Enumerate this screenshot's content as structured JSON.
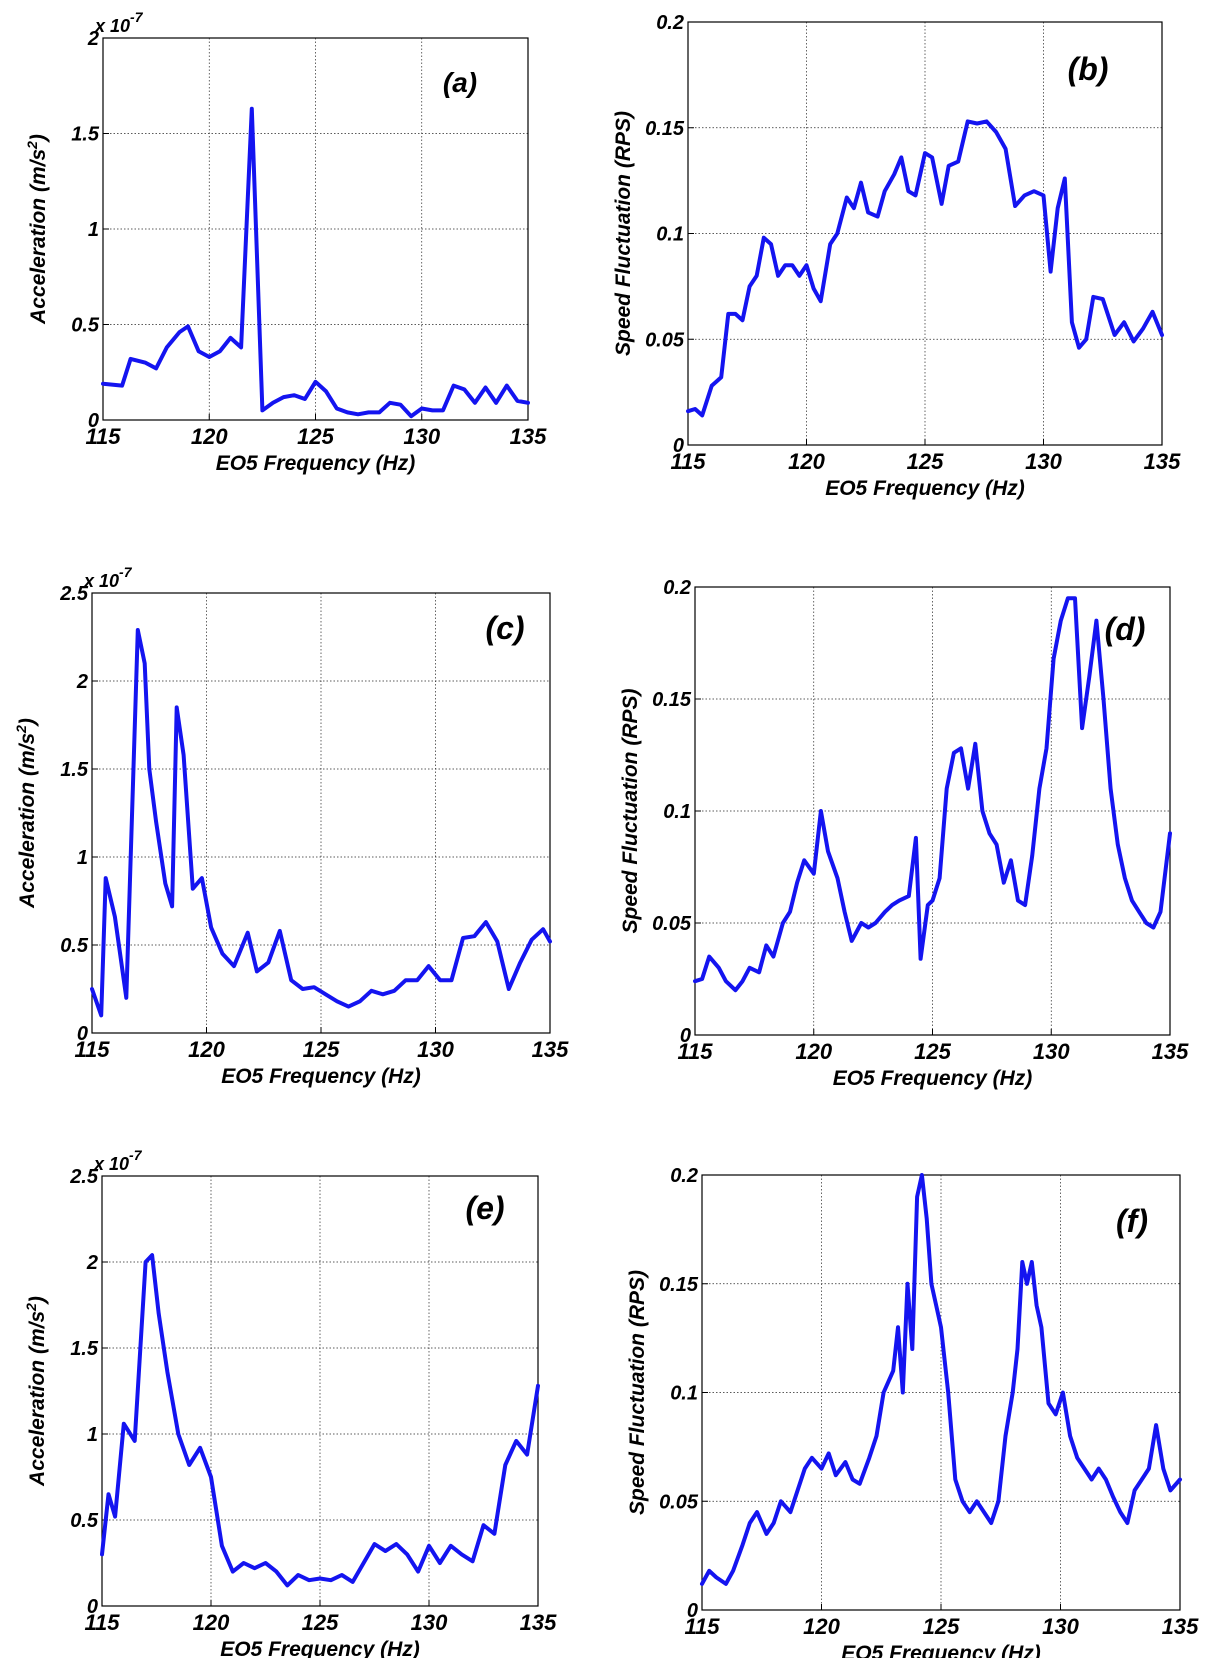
{
  "figure": {
    "panels_label": [
      "(a)",
      "(b)",
      "(c)",
      "(d)",
      "(e)",
      "(f)"
    ]
  },
  "chart_data": [
    {
      "id": "a",
      "type": "line",
      "label": "(a)",
      "xlabel": "EO5 Frequency (Hz)",
      "ylabel": "Acceleration (m/s2)",
      "xlim": [
        115,
        135
      ],
      "ylim": [
        0,
        2
      ],
      "xticks": [
        "115",
        "120",
        "125",
        "130",
        "135"
      ],
      "yticks": [
        "0",
        "0.5",
        "1",
        "1.5",
        "2"
      ],
      "multiplier": "x 10-7",
      "grid": true,
      "series": [
        {
          "x": [
            115,
            115.9,
            116.3,
            117,
            117.5,
            118,
            118.6,
            119,
            119.5,
            120,
            120.5,
            121,
            121.5,
            122,
            122.5,
            123,
            123.5,
            124,
            124.5,
            125,
            125.5,
            126,
            126.5,
            127,
            127.5,
            128,
            128.5,
            129,
            129.5,
            130,
            130.5,
            131,
            131.5,
            132,
            132.5,
            133,
            133.5,
            134,
            134.5,
            135
          ],
          "y": [
            0.19,
            0.18,
            0.32,
            0.3,
            0.27,
            0.38,
            0.46,
            0.49,
            0.36,
            0.33,
            0.36,
            0.43,
            0.38,
            1.63,
            0.05,
            0.09,
            0.12,
            0.13,
            0.11,
            0.2,
            0.15,
            0.06,
            0.04,
            0.03,
            0.04,
            0.04,
            0.09,
            0.08,
            0.02,
            0.06,
            0.05,
            0.05,
            0.18,
            0.16,
            0.09,
            0.17,
            0.09,
            0.18,
            0.1,
            0.09
          ]
        }
      ]
    },
    {
      "id": "b",
      "type": "line",
      "label": "(b)",
      "xlabel": "EO5 Frequency (Hz)",
      "ylabel": "Speed Fluctuation (RPS)",
      "xlim": [
        115,
        135
      ],
      "ylim": [
        0,
        0.2
      ],
      "xticks": [
        "115",
        "120",
        "125",
        "130",
        "135"
      ],
      "yticks": [
        "0",
        "0.05",
        "0.1",
        "0.15",
        "0.2"
      ],
      "grid": true,
      "series": [
        {
          "x": [
            115,
            115.3,
            115.6,
            116,
            116.4,
            116.7,
            117,
            117.3,
            117.6,
            117.9,
            118.2,
            118.5,
            118.8,
            119.1,
            119.4,
            119.7,
            120,
            120.3,
            120.6,
            121,
            121.3,
            121.7,
            122,
            122.3,
            122.6,
            123,
            123.3,
            123.7,
            124,
            124.3,
            124.6,
            125,
            125.3,
            125.7,
            126,
            126.4,
            126.8,
            127.2,
            127.6,
            128,
            128.4,
            128.8,
            129.2,
            129.6,
            130,
            130.3,
            130.6,
            130.9,
            131.2,
            131.5,
            131.8,
            132.1,
            132.5,
            133,
            133.4,
            133.8,
            134.2,
            134.6,
            135
          ],
          "y": [
            0.016,
            0.017,
            0.014,
            0.028,
            0.032,
            0.062,
            0.062,
            0.059,
            0.075,
            0.08,
            0.098,
            0.095,
            0.08,
            0.085,
            0.085,
            0.08,
            0.085,
            0.074,
            0.068,
            0.095,
            0.1,
            0.117,
            0.112,
            0.124,
            0.11,
            0.108,
            0.12,
            0.128,
            0.136,
            0.12,
            0.118,
            0.138,
            0.136,
            0.114,
            0.132,
            0.134,
            0.153,
            0.152,
            0.153,
            0.148,
            0.14,
            0.113,
            0.118,
            0.12,
            0.118,
            0.082,
            0.112,
            0.126,
            0.058,
            0.046,
            0.05,
            0.07,
            0.069,
            0.052,
            0.058,
            0.049,
            0.055,
            0.063,
            0.052
          ]
        }
      ]
    },
    {
      "id": "c",
      "type": "line",
      "label": "(c)",
      "xlabel": "EO5 Frequency (Hz)",
      "ylabel": "Acceleration (m/s2)",
      "xlim": [
        115,
        135
      ],
      "ylim": [
        0,
        2.5
      ],
      "xticks": [
        "115",
        "120",
        "125",
        "130",
        "135"
      ],
      "yticks": [
        "0",
        "0.5",
        "1",
        "1.5",
        "2",
        "2.5"
      ],
      "multiplier": "x 10-7",
      "grid": true,
      "series": [
        {
          "x": [
            115,
            115.4,
            115.6,
            116,
            116.5,
            117,
            117.3,
            117.5,
            117.8,
            118.2,
            118.5,
            118.7,
            119,
            119.4,
            119.8,
            120.2,
            120.7,
            121.2,
            121.8,
            122.2,
            122.7,
            123.2,
            123.7,
            124.2,
            124.7,
            125.2,
            125.7,
            126.2,
            126.7,
            127.2,
            127.7,
            128.2,
            128.7,
            129.2,
            129.7,
            130.2,
            130.7,
            131.2,
            131.7,
            132.2,
            132.7,
            133.2,
            133.7,
            134.2,
            134.7,
            135
          ],
          "y": [
            0.25,
            0.1,
            0.88,
            0.66,
            0.2,
            2.29,
            2.1,
            1.5,
            1.2,
            0.85,
            0.72,
            1.85,
            1.58,
            0.82,
            0.88,
            0.6,
            0.45,
            0.38,
            0.57,
            0.35,
            0.4,
            0.58,
            0.3,
            0.25,
            0.26,
            0.22,
            0.18,
            0.15,
            0.18,
            0.24,
            0.22,
            0.24,
            0.3,
            0.3,
            0.38,
            0.3,
            0.3,
            0.54,
            0.55,
            0.63,
            0.52,
            0.25,
            0.4,
            0.53,
            0.59,
            0.52
          ]
        }
      ]
    },
    {
      "id": "d",
      "type": "line",
      "label": "(d)",
      "xlabel": "EO5 Frequency (Hz)",
      "ylabel": "Speed Fluctuation (RPS)",
      "xlim": [
        115,
        135
      ],
      "ylim": [
        0,
        0.2
      ],
      "xticks": [
        "115",
        "120",
        "125",
        "130",
        "135"
      ],
      "yticks": [
        "0",
        "0.05",
        "0.1",
        "0.15",
        "0.2"
      ],
      "grid": true,
      "series": [
        {
          "x": [
            115,
            115.3,
            115.6,
            116,
            116.3,
            116.7,
            117,
            117.3,
            117.7,
            118,
            118.3,
            118.7,
            119,
            119.3,
            119.6,
            120,
            120.3,
            120.6,
            121,
            121.3,
            121.6,
            122,
            122.3,
            122.6,
            123,
            123.3,
            123.6,
            124,
            124.3,
            124.5,
            124.8,
            125,
            125.3,
            125.6,
            125.9,
            126.2,
            126.5,
            126.8,
            127.1,
            127.4,
            127.7,
            128,
            128.3,
            128.6,
            128.9,
            129.2,
            129.5,
            129.8,
            130.1,
            130.4,
            130.7,
            131,
            131.3,
            131.6,
            131.9,
            132.2,
            132.5,
            132.8,
            133.1,
            133.4,
            133.7,
            134,
            134.3,
            134.6,
            135
          ],
          "y": [
            0.024,
            0.025,
            0.035,
            0.03,
            0.024,
            0.02,
            0.024,
            0.03,
            0.028,
            0.04,
            0.035,
            0.05,
            0.055,
            0.068,
            0.078,
            0.072,
            0.1,
            0.082,
            0.07,
            0.055,
            0.042,
            0.05,
            0.048,
            0.05,
            0.055,
            0.058,
            0.06,
            0.062,
            0.088,
            0.034,
            0.058,
            0.06,
            0.07,
            0.11,
            0.126,
            0.128,
            0.11,
            0.13,
            0.1,
            0.09,
            0.085,
            0.068,
            0.078,
            0.06,
            0.058,
            0.08,
            0.11,
            0.128,
            0.168,
            0.185,
            0.195,
            0.195,
            0.137,
            0.16,
            0.185,
            0.15,
            0.11,
            0.085,
            0.07,
            0.06,
            0.055,
            0.05,
            0.048,
            0.055,
            0.09
          ]
        }
      ]
    },
    {
      "id": "e",
      "type": "line",
      "label": "(e)",
      "xlabel": "EO5 Frequency (Hz)",
      "ylabel": "Acceleration (m/s2)",
      "xlim": [
        115,
        135
      ],
      "ylim": [
        0,
        2.5
      ],
      "xticks": [
        "115",
        "120",
        "125",
        "130",
        "135"
      ],
      "yticks": [
        "0",
        "0.5",
        "1",
        "1.5",
        "2",
        "2.5"
      ],
      "multiplier": "x 10-7",
      "grid": true,
      "series": [
        {
          "x": [
            115,
            115.3,
            115.6,
            116,
            116.5,
            117,
            117.3,
            117.6,
            118,
            118.5,
            119,
            119.5,
            120,
            120.5,
            121,
            121.5,
            122,
            122.5,
            123,
            123.5,
            124,
            124.5,
            125,
            125.5,
            126,
            126.5,
            127,
            127.5,
            128,
            128.5,
            129,
            129.5,
            130,
            130.5,
            131,
            131.5,
            132,
            132.5,
            133,
            133.5,
            134,
            134.5,
            135
          ],
          "y": [
            0.3,
            0.65,
            0.52,
            1.06,
            0.96,
            2.0,
            2.04,
            1.7,
            1.36,
            1.0,
            0.82,
            0.92,
            0.75,
            0.35,
            0.2,
            0.25,
            0.22,
            0.25,
            0.2,
            0.12,
            0.18,
            0.15,
            0.16,
            0.15,
            0.18,
            0.14,
            0.25,
            0.36,
            0.32,
            0.36,
            0.3,
            0.2,
            0.35,
            0.25,
            0.35,
            0.3,
            0.26,
            0.47,
            0.42,
            0.82,
            0.96,
            0.88,
            1.28
          ]
        }
      ]
    },
    {
      "id": "f",
      "type": "line",
      "label": "(f)",
      "xlabel": "EO5 Frequency (Hz)",
      "ylabel": "Speed Fluctuation (RPS)",
      "xlim": [
        115,
        135
      ],
      "ylim": [
        0,
        0.2
      ],
      "xticks": [
        "115",
        "120",
        "125",
        "130",
        "135"
      ],
      "yticks": [
        "0",
        "0.05",
        "0.1",
        "0.15",
        "0.2"
      ],
      "grid": true,
      "series": [
        {
          "x": [
            115,
            115.3,
            115.6,
            116,
            116.3,
            116.7,
            117,
            117.3,
            117.7,
            118,
            118.3,
            118.7,
            119,
            119.3,
            119.6,
            120,
            120.3,
            120.6,
            121,
            121.3,
            121.6,
            122,
            122.3,
            122.6,
            123,
            123.2,
            123.4,
            123.6,
            123.8,
            124,
            124.2,
            124.4,
            124.6,
            124.8,
            125,
            125.3,
            125.6,
            125.9,
            126.2,
            126.5,
            126.8,
            127.1,
            127.4,
            127.7,
            128,
            128.2,
            128.4,
            128.6,
            128.8,
            129,
            129.2,
            129.5,
            129.8,
            130.1,
            130.4,
            130.7,
            131,
            131.3,
            131.6,
            131.9,
            132.2,
            132.5,
            132.8,
            133.1,
            133.4,
            133.7,
            134,
            134.3,
            134.6,
            135
          ],
          "y": [
            0.012,
            0.018,
            0.015,
            0.012,
            0.018,
            0.03,
            0.04,
            0.045,
            0.035,
            0.04,
            0.05,
            0.045,
            0.055,
            0.065,
            0.07,
            0.065,
            0.072,
            0.062,
            0.068,
            0.06,
            0.058,
            0.07,
            0.08,
            0.1,
            0.11,
            0.13,
            0.1,
            0.15,
            0.12,
            0.19,
            0.2,
            0.18,
            0.15,
            0.14,
            0.13,
            0.1,
            0.06,
            0.05,
            0.045,
            0.05,
            0.045,
            0.04,
            0.05,
            0.08,
            0.1,
            0.12,
            0.16,
            0.15,
            0.16,
            0.14,
            0.13,
            0.095,
            0.09,
            0.1,
            0.08,
            0.07,
            0.065,
            0.06,
            0.065,
            0.06,
            0.052,
            0.045,
            0.04,
            0.055,
            0.06,
            0.065,
            0.085,
            0.065,
            0.055,
            0.06
          ]
        }
      ]
    }
  ]
}
